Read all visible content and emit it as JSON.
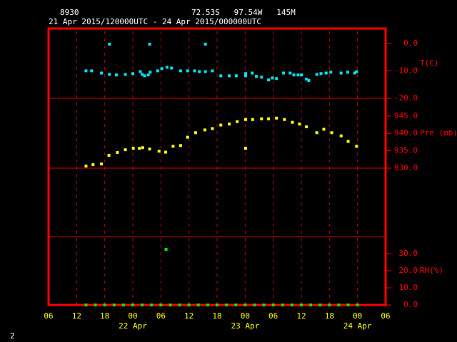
{
  "header": {
    "station": "8930",
    "location": "72.53S   97.54W   145M",
    "period": "21 Apr 2015/120000UTC - 24 Apr 2015/000000UTC"
  },
  "page_number": "2",
  "chart_data": [
    {
      "type": "scatter",
      "ylabel": "T(C)",
      "color": "#00e5ee",
      "xlim": [
        0,
        72
      ],
      "ylim": [
        -20,
        5.4
      ],
      "yticks": [
        {
          "value": 0,
          "label": "0.0"
        },
        {
          "value": -10,
          "label": "-10.0"
        },
        {
          "value": -20,
          "label": "-20.0"
        }
      ],
      "x": [
        8,
        9.2,
        11.3,
        13,
        13,
        14.5,
        16.4,
        18,
        19.6,
        20,
        20.5,
        21.3,
        21.6,
        21.7,
        23.3,
        24.2,
        25.3,
        26.3,
        28.2,
        29.7,
        31.2,
        32.2,
        33.5,
        33.5,
        35,
        36.8,
        38.6,
        40.1,
        42.1,
        42.1,
        43.5,
        44.4,
        45.5,
        47,
        47.8,
        48.7,
        50.2,
        51.6,
        52.4,
        53.3,
        54,
        55.1,
        55.6,
        57.3,
        58.2,
        59.3,
        60.3,
        62.5,
        63.9,
        65.4,
        65.8
      ],
      "values": [
        -10,
        -10,
        -10.8,
        -0.3,
        -11.3,
        -11.5,
        -11.3,
        -11,
        -10.3,
        -11.3,
        -11.8,
        -11.5,
        -0.3,
        -10.5,
        -10,
        -9.2,
        -8.7,
        -9,
        -10,
        -10,
        -10,
        -10.3,
        -0.3,
        -10.3,
        -10,
        -11.8,
        -11.8,
        -11.8,
        -11,
        -11.8,
        -10.8,
        -12,
        -12.3,
        -13.3,
        -12.6,
        -12.8,
        -10.8,
        -10.8,
        -11.5,
        -11.5,
        -11.5,
        -13,
        -13.5,
        -11.3,
        -11,
        -10.8,
        -10.5,
        -10.8,
        -10.5,
        -10.8,
        -10.3
      ]
    },
    {
      "type": "scatter",
      "ylabel": "Pre (mb)",
      "color": "#ffff00",
      "xlim": [
        0,
        72
      ],
      "ylim": [
        930,
        950.1
      ],
      "yticks": [
        {
          "value": 945,
          "label": "945.0"
        },
        {
          "value": 940,
          "label": "940.0"
        },
        {
          "value": 935,
          "label": "935.0"
        },
        {
          "value": 930,
          "label": "930.0"
        }
      ],
      "x": [
        8,
        9.5,
        11.3,
        12.9,
        14.7,
        16.4,
        18.1,
        19.4,
        20.1,
        21.6,
        23.6,
        25,
        26.6,
        28.2,
        29.7,
        31.4,
        33.4,
        35,
        36.8,
        38.6,
        40.3,
        42.1,
        42.1,
        43.6,
        45.5,
        47,
        48.7,
        50.4,
        52.1,
        53.6,
        55.1,
        57.3,
        58.8,
        60.5,
        62.5,
        64,
        65.8
      ],
      "values": [
        930.6,
        931,
        931.2,
        933.7,
        934.5,
        935.3,
        935.7,
        935.7,
        935.9,
        935.5,
        934.9,
        934.6,
        936.3,
        936.5,
        938.9,
        940.2,
        941,
        941.4,
        942.4,
        942.7,
        943.4,
        935.7,
        944,
        944,
        944.2,
        944.2,
        944.4,
        944,
        943.2,
        942.7,
        941.9,
        940.2,
        941.2,
        940.2,
        939.3,
        937.7,
        936.3
      ]
    },
    {
      "type": "scatter",
      "ylabel": "RH(%)",
      "color": "#00ee00",
      "xlim": [
        0,
        72
      ],
      "ylim": [
        0,
        40
      ],
      "yticks": [
        {
          "value": 30,
          "label": "30.0"
        },
        {
          "value": 20,
          "label": "20.0"
        },
        {
          "value": 10,
          "label": "10.0"
        },
        {
          "value": 0,
          "label": "0.0"
        }
      ],
      "xticks": [
        {
          "value": 0,
          "label": "06"
        },
        {
          "value": 6,
          "label": "12"
        },
        {
          "value": 12,
          "label": "18"
        },
        {
          "value": 18,
          "label": "00"
        },
        {
          "value": 24,
          "label": "06"
        },
        {
          "value": 30,
          "label": "12"
        },
        {
          "value": 36,
          "label": "18"
        },
        {
          "value": 42,
          "label": "00"
        },
        {
          "value": 48,
          "label": "06"
        },
        {
          "value": 54,
          "label": "12"
        },
        {
          "value": 60,
          "label": "18"
        },
        {
          "value": 66,
          "label": "00"
        },
        {
          "value": 72,
          "label": "06"
        }
      ],
      "date_labels": [
        {
          "value": 18,
          "label": "22 Apr"
        },
        {
          "value": 42,
          "label": "23 Apr"
        },
        {
          "value": 66,
          "label": "24 Apr"
        }
      ],
      "x": [
        25.1,
        8,
        10,
        12,
        14,
        16,
        18,
        20,
        22,
        24,
        26,
        28,
        30,
        32,
        34,
        36,
        38,
        40,
        42,
        44,
        46,
        48,
        50,
        52,
        54,
        56,
        58,
        60,
        62,
        64,
        66
      ],
      "values": [
        32.5,
        0,
        0,
        0,
        0,
        0,
        0,
        0,
        0,
        0,
        0,
        0,
        0,
        0,
        0,
        0,
        0,
        0,
        0,
        0,
        0,
        0,
        0,
        0,
        0,
        0,
        0,
        0,
        0,
        0,
        0
      ]
    }
  ]
}
